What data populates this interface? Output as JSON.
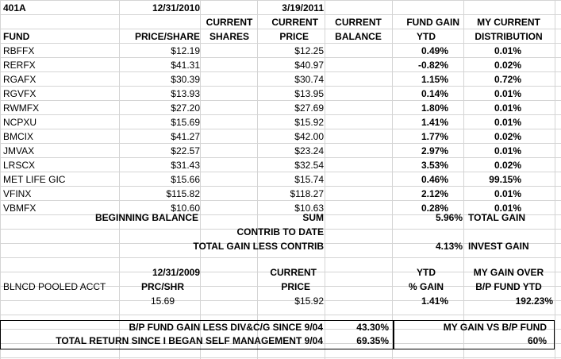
{
  "row0": {
    "title": "401A",
    "date1": "12/31/2010",
    "date2": "3/19/2011"
  },
  "row1": {
    "h_current": "CURRENT",
    "h_current2": "CURRENT",
    "h_current3": "CURRENT",
    "h_fundgain": "FUND GAIN",
    "h_mycurrent": "MY CURRENT"
  },
  "row2": {
    "h_fund": "FUND",
    "h_pps": "PRICE/SHARE",
    "h_shares": "SHARES",
    "h_price": "PRICE",
    "h_balance": "BALANCE",
    "h_ytd": "YTD",
    "h_dist": "DISTRIBUTION"
  },
  "funds": [
    {
      "fund": "RBFFX",
      "price2010": "$12.19",
      "price_now": "$12.25",
      "ytd": "0.49%",
      "dist": "0.01%"
    },
    {
      "fund": "RERFX",
      "price2010": "$41.31",
      "price_now": "$40.97",
      "ytd": "-0.82%",
      "dist": "0.02%"
    },
    {
      "fund": "RGAFX",
      "price2010": "$30.39",
      "price_now": "$30.74",
      "ytd": "1.15%",
      "dist": "0.72%"
    },
    {
      "fund": "RGVFX",
      "price2010": "$13.93",
      "price_now": "$13.95",
      "ytd": "0.14%",
      "dist": "0.01%"
    },
    {
      "fund": "RWMFX",
      "price2010": "$27.20",
      "price_now": "$27.69",
      "ytd": "1.80%",
      "dist": "0.01%"
    },
    {
      "fund": "NCPXU",
      "price2010": "$15.69",
      "price_now": "$15.92",
      "ytd": "1.41%",
      "dist": "0.01%"
    },
    {
      "fund": "BMCIX",
      "price2010": "$41.27",
      "price_now": "$42.00",
      "ytd": "1.77%",
      "dist": "0.02%"
    },
    {
      "fund": "JMVAX",
      "price2010": "$22.57",
      "price_now": "$23.24",
      "ytd": "2.97%",
      "dist": "0.01%"
    },
    {
      "fund": "LRSCX",
      "price2010": "$31.43",
      "price_now": "$32.54",
      "ytd": "3.53%",
      "dist": "0.02%"
    },
    {
      "fund": "MET LIFE GIC",
      "price2010": "$15.66",
      "price_now": "$15.74",
      "ytd": "0.46%",
      "dist": "99.15%"
    },
    {
      "fund": "VFINX",
      "price2010": "$115.82",
      "price_now": "$118.27",
      "ytd": "2.12%",
      "dist": "0.01%"
    },
    {
      "fund": "VBMFX",
      "price2010": "$10.60",
      "price_now": "$10.63",
      "ytd": "0.28%",
      "dist": "0.01%"
    }
  ],
  "summary": {
    "beginning_balance": "BEGINNING BALANCE",
    "sum": "SUM",
    "total_gain_pct": "5.96%",
    "total_gain_label": "TOTAL GAIN",
    "contrib_to_date": "CONTRIB TO DATE",
    "total_gain_less_contrib": "TOTAL GAIN LESS CONTRIB",
    "invest_gain_pct": "4.13%",
    "invest_gain_label": "INVEST GAIN"
  },
  "pooled": {
    "date": "12/31/2009",
    "current": "CURRENT",
    "ytd": "YTD",
    "my_gain_over": "MY GAIN OVER",
    "acct_label": "BLNCD POOLED ACCT",
    "prc_shr": "PRC/SHR",
    "price": "PRICE",
    "pct_gain": "% GAIN",
    "bp_fund_ytd": "B/P FUND YTD",
    "val_2009": "15.69",
    "val_now": "$15.92",
    "val_ytd": "1.41%",
    "val_gain_over": "192.23%"
  },
  "bottom": {
    "bp_gain_label": "B/P FUND GAIN LESS DIV&C/G SINCE 9/04",
    "bp_gain_val": "43.30%",
    "my_gain_vs_label": "MY GAIN VS B/P FUND",
    "total_return_label": "TOTAL RETURN SINCE I BEGAN SELF MANAGEMENT 9/04",
    "total_return_val": "69.35%",
    "my_gain_vs_val": "60%"
  }
}
